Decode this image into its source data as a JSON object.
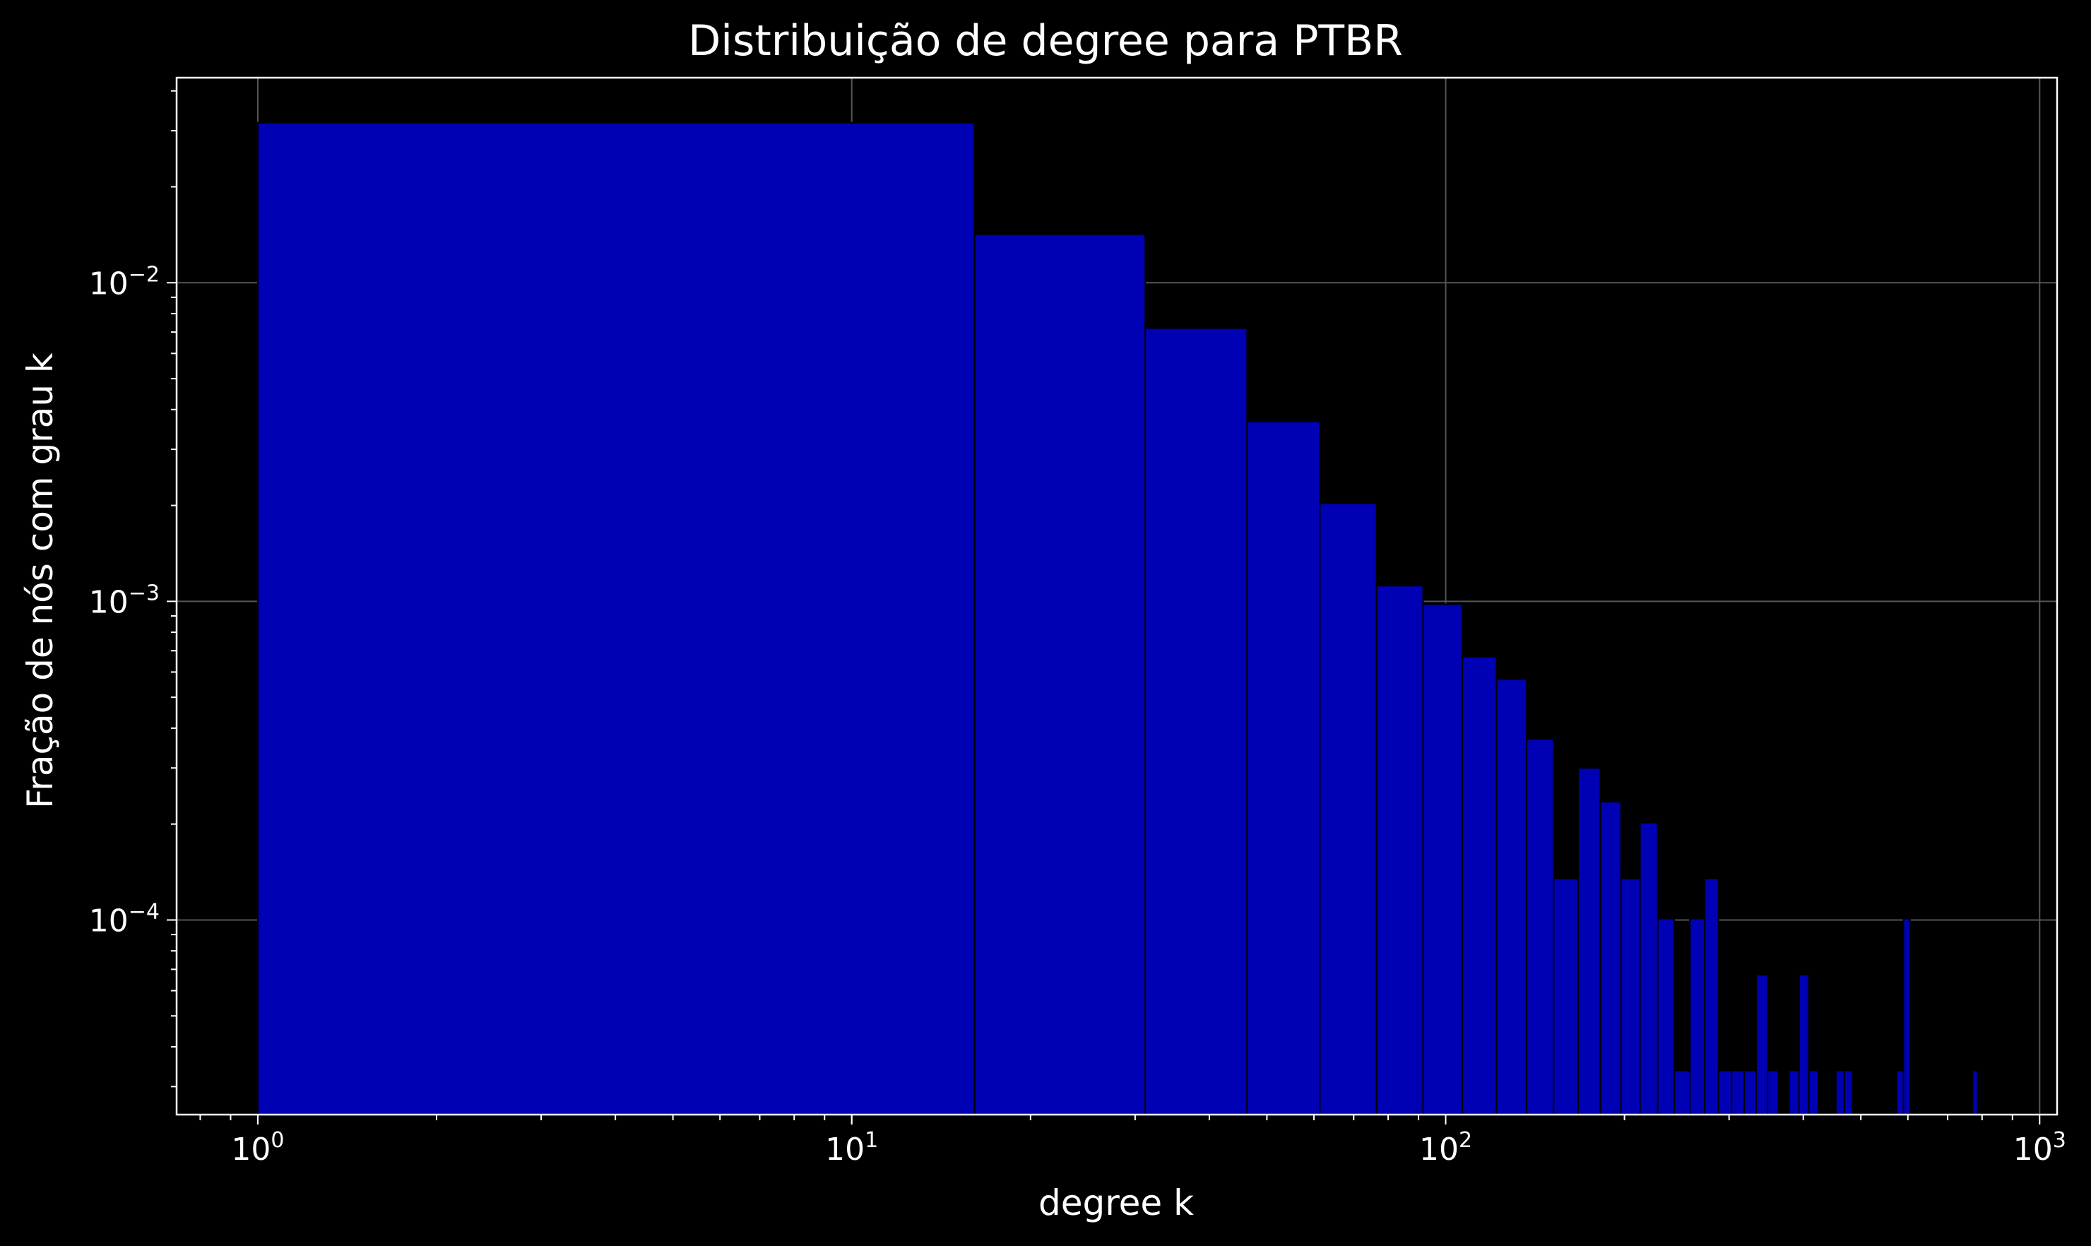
{
  "chart_data": {
    "type": "bar",
    "title": "Distribuição de degree para PTBR",
    "xlabel": "degree k",
    "ylabel": "Fração de nós com grau k",
    "xscale": "log",
    "yscale": "log",
    "xlim": [
      0.73,
      1070
    ],
    "ylim": [
      2.45e-05,
      0.044
    ],
    "grid": true,
    "colors": {
      "background": "#000000",
      "bar": "#0000b4",
      "bar_edge": "#000000",
      "axes": "#ffffff",
      "grid": "#555555"
    },
    "x_ticks": [
      {
        "value": 1,
        "label": "10",
        "exp": "0"
      },
      {
        "value": 10,
        "label": "10",
        "exp": "1"
      },
      {
        "value": 100,
        "label": "10",
        "exp": "2"
      },
      {
        "value": 1000,
        "label": "10",
        "exp": "3"
      }
    ],
    "y_ticks": [
      {
        "value": 0.01,
        "label": "10",
        "exp": "−2"
      },
      {
        "value": 0.001,
        "label": "10",
        "exp": "−3"
      },
      {
        "value": 0.0001,
        "label": "10",
        "exp": "−4"
      }
    ],
    "bars": [
      {
        "x0": 1.0,
        "x1": 16.1,
        "value": 0.0318
      },
      {
        "x0": 16.1,
        "x1": 31.2,
        "value": 0.0142
      },
      {
        "x0": 31.2,
        "x1": 46.3,
        "value": 0.0072
      },
      {
        "x0": 46.3,
        "x1": 61.4,
        "value": 0.00367
      },
      {
        "x0": 61.4,
        "x1": 76.5,
        "value": 0.00203
      },
      {
        "x0": 76.5,
        "x1": 91.6,
        "value": 0.00112
      },
      {
        "x0": 91.6,
        "x1": 106.7,
        "value": 0.00098
      },
      {
        "x0": 106.7,
        "x1": 121.8,
        "value": 0.00067
      },
      {
        "x0": 121.8,
        "x1": 136.9,
        "value": 0.00057
      },
      {
        "x0": 136.9,
        "x1": 152.0,
        "value": 0.00037
      },
      {
        "x0": 152.0,
        "x1": 167.1,
        "value": 0.000135
      },
      {
        "x0": 167.1,
        "x1": 182.2,
        "value": 0.0003
      },
      {
        "x0": 182.2,
        "x1": 197.3,
        "value": 0.000235
      },
      {
        "x0": 197.3,
        "x1": 212.4,
        "value": 0.000135
      },
      {
        "x0": 212.4,
        "x1": 227.5,
        "value": 0.000202
      },
      {
        "x0": 227.5,
        "x1": 242.6,
        "value": 0.000101
      },
      {
        "x0": 242.6,
        "x1": 257.7,
        "value": 3.37e-05
      },
      {
        "x0": 257.7,
        "x1": 272.8,
        "value": 0.000101
      },
      {
        "x0": 272.8,
        "x1": 287.9,
        "value": 0.000135
      },
      {
        "x0": 287.9,
        "x1": 303.0,
        "value": 3.37e-05
      },
      {
        "x0": 303.0,
        "x1": 318.1,
        "value": 3.37e-05
      },
      {
        "x0": 318.1,
        "x1": 333.2,
        "value": 3.37e-05
      },
      {
        "x0": 333.2,
        "x1": 348.3,
        "value": 6.73e-05
      },
      {
        "x0": 348.3,
        "x1": 363.4,
        "value": 3.37e-05
      },
      {
        "x0": 378.5,
        "x1": 393.6,
        "value": 3.37e-05
      },
      {
        "x0": 393.6,
        "x1": 408.7,
        "value": 6.73e-05
      },
      {
        "x0": 408.7,
        "x1": 423.8,
        "value": 3.37e-05
      },
      {
        "x0": 453.9,
        "x1": 469.0,
        "value": 3.37e-05
      },
      {
        "x0": 469.0,
        "x1": 484.1,
        "value": 3.37e-05
      },
      {
        "x0": 574.7,
        "x1": 589.8,
        "value": 3.37e-05
      },
      {
        "x0": 589.8,
        "x1": 604.9,
        "value": 0.000101
      },
      {
        "x0": 771.0,
        "x1": 786.1,
        "value": 3.37e-05
      }
    ]
  }
}
